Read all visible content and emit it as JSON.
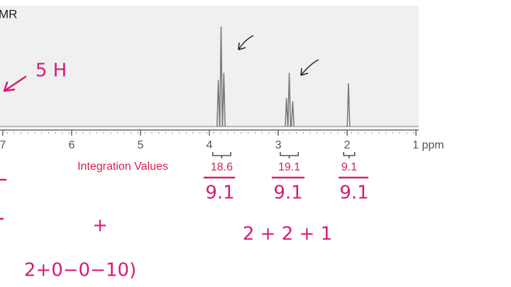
{
  "chart_data": {
    "type": "spectrum",
    "title": "MR",
    "x": [
      3.87,
      3.83,
      3.79,
      2.88,
      2.84,
      2.79,
      1.98
    ],
    "values": [
      44,
      95,
      51,
      27,
      51,
      24,
      41
    ],
    "color": "#777777",
    "xlim": [
      7.04,
      0.96
    ],
    "ylim": [
      0,
      100
    ],
    "xticks": [
      7,
      6,
      5,
      4,
      3,
      2,
      {
        "value": 1,
        "label": "1 ppm"
      }
    ],
    "integration": {
      "title": "Integration Values",
      "values": [
        18.6,
        19.1,
        9.1
      ],
      "ranges": [
        [
          3.95,
          3.69
        ],
        [
          2.97,
          2.71
        ],
        [
          2.05,
          1.89
        ]
      ]
    }
  },
  "annotations": [
    "5 H",
    "9.1",
    "9.1",
    "9.1",
    "2 + 2 + 1",
    "+",
    "2+0−0−10)"
  ]
}
